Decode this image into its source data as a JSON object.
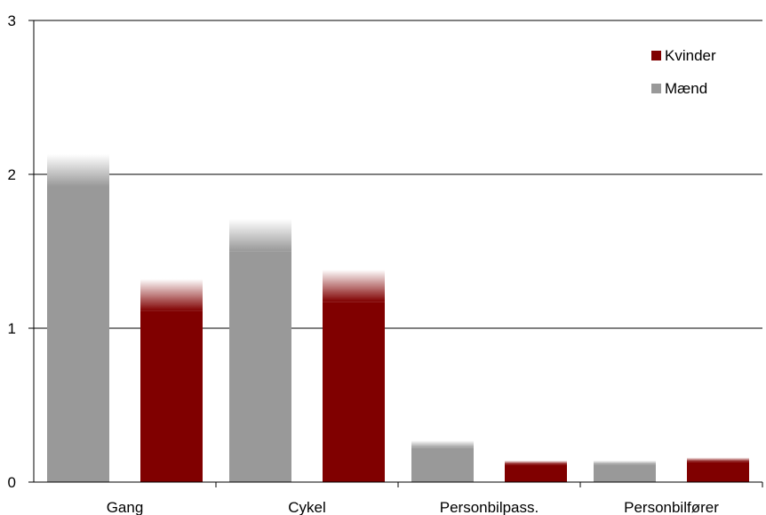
{
  "chart_data": {
    "type": "bar",
    "categories": [
      "Gang",
      "Cykel",
      "Personbilpass.",
      "Personbilfører"
    ],
    "series": [
      {
        "name": "Mænd",
        "color": "#999999",
        "values": [
          2.13,
          1.71,
          0.27,
          0.14
        ]
      },
      {
        "name": "Kvinder",
        "color": "#800000",
        "values": [
          1.32,
          1.38,
          0.14,
          0.16
        ]
      }
    ],
    "title": "",
    "xlabel": "",
    "ylabel": "",
    "ylim": [
      0,
      3
    ],
    "yticks": [
      "0",
      "1",
      "2",
      "3"
    ],
    "grid": true,
    "legend": {
      "placement": "top-right",
      "entries": [
        "Kvinder",
        "Mænd"
      ]
    }
  }
}
